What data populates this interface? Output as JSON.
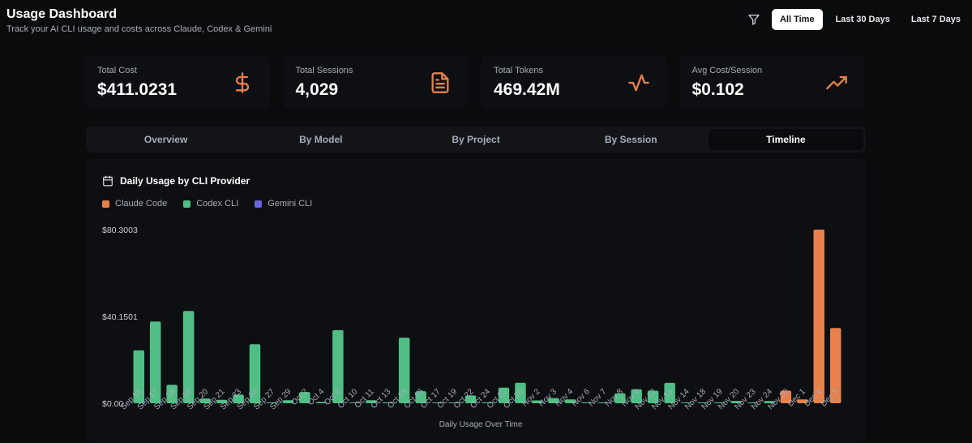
{
  "header": {
    "title": "Usage Dashboard",
    "subtitle": "Track your AI CLI usage and costs across Claude, Codex & Gemini"
  },
  "filters": {
    "icon": "filter-icon",
    "options": [
      "All Time",
      "Last 30 Days",
      "Last 7 Days"
    ],
    "selected": "All Time"
  },
  "stats": [
    {
      "label": "Total Cost",
      "value": "$411.0231",
      "icon": "dollar-icon",
      "color": "#e8804a"
    },
    {
      "label": "Total Sessions",
      "value": "4,029",
      "icon": "document-icon",
      "color": "#e8804a"
    },
    {
      "label": "Total Tokens",
      "value": "469.42M",
      "icon": "activity-icon",
      "color": "#e8804a"
    },
    {
      "label": "Avg Cost/Session",
      "value": "$0.102",
      "icon": "trending-up-icon",
      "color": "#e8804a"
    }
  ],
  "tabs": [
    "Overview",
    "By Model",
    "By Project",
    "By Session",
    "Timeline"
  ],
  "active_tab": "Timeline",
  "panel": {
    "title": "Daily Usage by CLI Provider",
    "icon": "calendar-icon"
  },
  "chart_data": {
    "type": "bar",
    "title": "Daily Usage by CLI Provider",
    "xlabel": "Daily Usage Over Time",
    "ylabel": "",
    "ylim": [
      0,
      80.3003
    ],
    "yticks": [
      "$0.00",
      "$40.1501",
      "$80.3003"
    ],
    "legend": "top-left",
    "grid": false,
    "colors": {
      "Claude Code": "#e8804a",
      "Codex CLI": "#4fbf86",
      "Gemini CLI": "#6a63e0"
    },
    "bars": [
      {
        "label": "Sep 16",
        "series": "Codex CLI",
        "value": 24.5
      },
      {
        "label": "Sep 17",
        "series": "Codex CLI",
        "value": 37.8
      },
      {
        "label": "Sep 18",
        "series": "Codex CLI",
        "value": 8.5
      },
      {
        "label": "Sep 19",
        "series": "Codex CLI",
        "value": 42.7
      },
      {
        "label": "Sep 20",
        "series": "Codex CLI",
        "value": 2.2
      },
      {
        "label": "Sep 21",
        "series": "Codex CLI",
        "value": 1.6
      },
      {
        "label": "Sep 23",
        "series": "Codex CLI",
        "value": 4.0
      },
      {
        "label": "Sep 24",
        "series": "Codex CLI",
        "value": 27.3
      },
      {
        "label": "Sep 27",
        "series": "Codex CLI",
        "value": 0.3
      },
      {
        "label": "Sep 29",
        "series": "Codex CLI",
        "value": 1.4
      },
      {
        "label": "Oct 2",
        "series": "Codex CLI",
        "value": 5.2
      },
      {
        "label": "Oct 4",
        "series": "Codex CLI",
        "value": 0.6
      },
      {
        "label": "Oct 8",
        "series": "Codex CLI",
        "value": 33.8
      },
      {
        "label": "Oct 10",
        "series": "Codex CLI",
        "value": 0.3
      },
      {
        "label": "Oct 11",
        "series": "Codex CLI",
        "value": 1.4
      },
      {
        "label": "Oct 13",
        "series": "Codex CLI",
        "value": 0.4
      },
      {
        "label": "Oct 15",
        "series": "Codex CLI",
        "value": 30.3
      },
      {
        "label": "Oct 16",
        "series": "Codex CLI",
        "value": 5.6
      },
      {
        "label": "Oct 17",
        "series": "Codex CLI",
        "value": 0.3
      },
      {
        "label": "Oct 19",
        "series": "Codex CLI",
        "value": 0.2
      },
      {
        "label": "Oct 22",
        "series": "Codex CLI",
        "value": 3.6
      },
      {
        "label": "Oct 24",
        "series": "Codex CLI",
        "value": 0.4
      },
      {
        "label": "Oct 25",
        "series": "Codex CLI",
        "value": 7.2
      },
      {
        "label": "Oct 26",
        "series": "Codex CLI",
        "value": 9.5
      },
      {
        "label": "Nov 2",
        "series": "Codex CLI",
        "value": 1.3
      },
      {
        "label": "Nov 3",
        "series": "Codex CLI",
        "value": 2.4
      },
      {
        "label": "Nov 4",
        "series": "Codex CLI",
        "value": 1.8
      },
      {
        "label": "Nov 6",
        "series": "Codex CLI",
        "value": 0.2
      },
      {
        "label": "Nov 7",
        "series": "Codex CLI",
        "value": 0.2
      },
      {
        "label": "Nov 8",
        "series": "Codex CLI",
        "value": 4.6
      },
      {
        "label": "Nov 9",
        "series": "Codex CLI",
        "value": 6.5
      },
      {
        "label": "Nov 12",
        "series": "Codex CLI",
        "value": 5.8
      },
      {
        "label": "Nov 13",
        "series": "Codex CLI",
        "value": 9.4
      },
      {
        "label": "Nov 14",
        "series": "Codex CLI",
        "value": 0.3
      },
      {
        "label": "Nov 18",
        "series": "Codex CLI",
        "value": 0.2
      },
      {
        "label": "Nov 19",
        "series": "Codex CLI",
        "value": 0.2
      },
      {
        "label": "Nov 20",
        "series": "Codex CLI",
        "value": 1.1
      },
      {
        "label": "Nov 23",
        "series": "Codex CLI",
        "value": 0.2
      },
      {
        "label": "Nov 24",
        "series": "Codex CLI",
        "value": 1.0
      },
      {
        "label": "Nov 30",
        "series": "Claude Code",
        "value": 5.8
      },
      {
        "label": "Dec 1",
        "series": "Claude Code",
        "value": 1.8
      },
      {
        "label": "Dec 4",
        "series": "Claude Code",
        "value": 80.3
      },
      {
        "label": "Dec 5",
        "series": "Claude Code",
        "value": 34.8
      }
    ],
    "x_tick_labels": [
      "Sep 16",
      "Sep 17",
      "Sep 18",
      "Sep 19",
      "Sep 20",
      "Sep 21",
      "Sep 23",
      "Sep 24",
      "Sep 27",
      "Sep 29",
      "Oct 2",
      "Oct 4",
      "Oct 8",
      "Oct 10",
      "Oct 11",
      "Oct 13",
      "Oct 15",
      "Oct 16",
      "Oct 17",
      "Oct 19",
      "Oct 22",
      "Oct 24",
      "Oct 25",
      "Oct 26",
      "Nov 2",
      "Nov 3",
      "Nov 4",
      "Nov 6",
      "Nov 7",
      "Nov 8",
      "Nov 9",
      "Nov 12",
      "Nov 13",
      "Nov 14",
      "Nov 18",
      "Nov 19",
      "Nov 20",
      "Nov 23",
      "Nov 24",
      "Nov 30",
      "Dec 1",
      "Dec 4",
      "Dec 5"
    ]
  }
}
